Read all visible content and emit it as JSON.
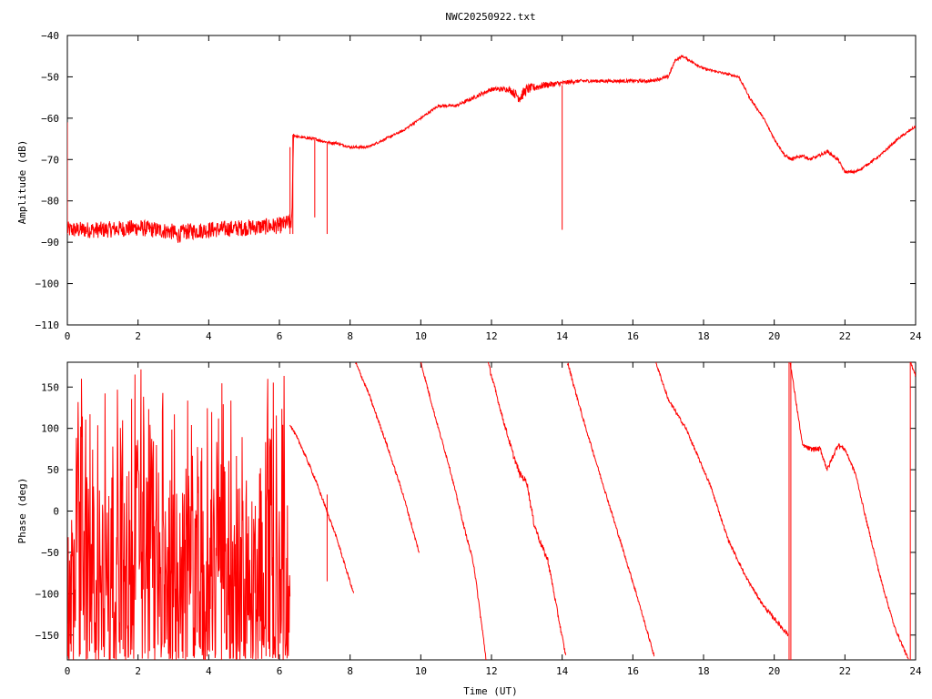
{
  "colors": {
    "series": "#ff0000",
    "axes": "#000000",
    "background": "#ffffff"
  },
  "chart_data": [
    {
      "type": "line",
      "title": "NWC20250922.txt",
      "xlabel": "",
      "ylabel": "Amplitude (dB)",
      "xlim": [
        0,
        24
      ],
      "ylim": [
        -110,
        -40
      ],
      "xticks": [
        0,
        2,
        4,
        6,
        8,
        10,
        12,
        14,
        16,
        18,
        20,
        22,
        24
      ],
      "yticks": [
        -40,
        -50,
        -60,
        -70,
        -80,
        -90,
        -100,
        -110
      ],
      "grid": false,
      "legend": "none",
      "series": [
        {
          "style": "noisy-line",
          "x": [
            0,
            0.5,
            1,
            2,
            3,
            3.1,
            3.3,
            4,
            5,
            6,
            6.35,
            6.4,
            6.5,
            7,
            7.2,
            7.45,
            7.6,
            8,
            8.5,
            9,
            9.5,
            10,
            10.5,
            11,
            11.5,
            12,
            12.5,
            12.8,
            13,
            13.5,
            14,
            14.5,
            15,
            15.5,
            16,
            16.5,
            17,
            17.2,
            17.4,
            17.6,
            18,
            18.5,
            19,
            19.3,
            19.7,
            20,
            20.3,
            20.5,
            20.8,
            21,
            21.3,
            21.5,
            21.8,
            22,
            22.3,
            22.5,
            23,
            23.5,
            24
          ],
          "y": [
            -87,
            -87,
            -87,
            -86.5,
            -87.5,
            -88.5,
            -87.5,
            -87,
            -86.5,
            -86,
            -85,
            -64,
            -64.5,
            -65,
            -65.5,
            -66,
            -66,
            -67,
            -67,
            -65,
            -63,
            -60,
            -57,
            -57,
            -55,
            -53,
            -53,
            -55,
            -53,
            -52,
            -51.5,
            -51,
            -51,
            -51,
            -51,
            -51,
            -50,
            -46,
            -45,
            -46,
            -48,
            -49,
            -50,
            -55,
            -60,
            -65,
            -69,
            -70,
            -69,
            -70,
            -69,
            -68,
            -70,
            -73,
            -73,
            -72,
            -69,
            -65,
            -62
          ],
          "noise": [
            2,
            2,
            2,
            2,
            2,
            2,
            2,
            2,
            2,
            2,
            2,
            0.4,
            0.3,
            0.3,
            0.3,
            0.3,
            0.3,
            0.3,
            0.3,
            0.3,
            0.3,
            0.3,
            0.3,
            0.3,
            0.5,
            0.5,
            0.7,
            1.5,
            1.2,
            0.8,
            0.6,
            0.4,
            0.4,
            0.4,
            0.4,
            0.4,
            0.4,
            0.3,
            0.3,
            0.3,
            0.3,
            0.3,
            0.3,
            0.3,
            0.3,
            0.3,
            0.4,
            0.4,
            0.4,
            0.4,
            0.4,
            0.4,
            0.4,
            0.3,
            0.3,
            0.3,
            0.3,
            0.3,
            0.3
          ]
        }
      ],
      "annotations": [
        {
          "x": 0.0,
          "y_from": -61,
          "y_to": -88
        },
        {
          "x": 6.3,
          "y_from": -67,
          "y_to": -88
        },
        {
          "x": 6.38,
          "y_from": -64,
          "y_to": -88
        },
        {
          "x": 7.0,
          "y_from": -65,
          "y_to": -84
        },
        {
          "x": 7.35,
          "y_from": -66,
          "y_to": -88
        },
        {
          "x": 14.0,
          "y_from": -52,
          "y_to": -87
        }
      ]
    },
    {
      "type": "line",
      "title": "",
      "xlabel": "Time (UT)",
      "ylabel": "Phase (deg)",
      "xlim": [
        0,
        24
      ],
      "ylim": [
        -180,
        180
      ],
      "xticks": [
        0,
        2,
        4,
        6,
        8,
        10,
        12,
        14,
        16,
        18,
        20,
        22,
        24
      ],
      "yticks": [
        150,
        100,
        50,
        0,
        -50,
        -100,
        -150
      ],
      "grid": false,
      "legend": "none",
      "noisy_segment": {
        "x_start": 0,
        "x_end": 6.3,
        "y_min": -180,
        "y_max": 180
      },
      "series": [
        {
          "style": "wrapped-phase",
          "x": [
            6.3,
            6.6,
            7.0,
            7.3,
            7.6,
            8.1,
            8.15,
            8.5,
            9.0,
            9.5,
            9.95,
            10.0,
            10.4,
            10.8,
            11.2,
            11.5,
            11.85,
            11.9,
            12.3,
            12.6,
            12.8,
            13.0,
            13.2,
            13.4,
            13.6,
            13.9,
            14.1,
            14.15,
            14.6,
            15.1,
            15.6,
            16.1,
            16.6,
            16.65,
            17.0,
            17.5,
            17.8,
            18.2,
            18.7,
            19.2,
            19.7,
            20.2,
            20.4,
            20.45,
            20.8,
            21.0,
            21.3,
            21.5,
            21.8,
            22.0,
            22.3,
            22.6,
            23.0,
            23.4,
            23.8,
            23.85,
            24.0
          ],
          "y": [
            105,
            80,
            40,
            5,
            -30,
            -100,
            180,
            145,
            85,
            20,
            -50,
            180,
            115,
            55,
            -15,
            -65,
            -180,
            180,
            115,
            70,
            45,
            35,
            -15,
            -40,
            -60,
            -130,
            -175,
            180,
            110,
            40,
            -30,
            -100,
            -175,
            180,
            135,
            100,
            70,
            30,
            -35,
            -80,
            -115,
            -140,
            -150,
            180,
            80,
            75,
            75,
            50,
            80,
            75,
            45,
            -10,
            -80,
            -140,
            -180,
            180,
            165
          ],
          "noise": [
            2,
            2,
            2,
            2,
            2,
            2,
            2,
            2,
            2,
            2,
            2,
            2,
            2,
            2,
            2,
            3,
            3,
            3,
            3,
            4,
            4,
            4,
            4,
            4,
            4,
            3,
            3,
            3,
            2,
            2,
            2,
            2,
            2,
            2,
            2,
            2,
            2,
            2,
            2,
            2,
            2,
            3,
            3,
            3,
            2,
            3,
            3,
            3,
            3,
            2,
            2,
            2,
            2,
            2,
            2,
            2,
            2
          ]
        }
      ],
      "annotations": [
        {
          "x": 7.35,
          "y_from": 20,
          "y_to": -85
        },
        {
          "x": 20.42,
          "y_from": 180,
          "y_to": -180
        },
        {
          "x": 20.47,
          "y_from": 180,
          "y_to": -180
        },
        {
          "x": 23.85,
          "y_from": 180,
          "y_to": -180
        }
      ]
    }
  ]
}
